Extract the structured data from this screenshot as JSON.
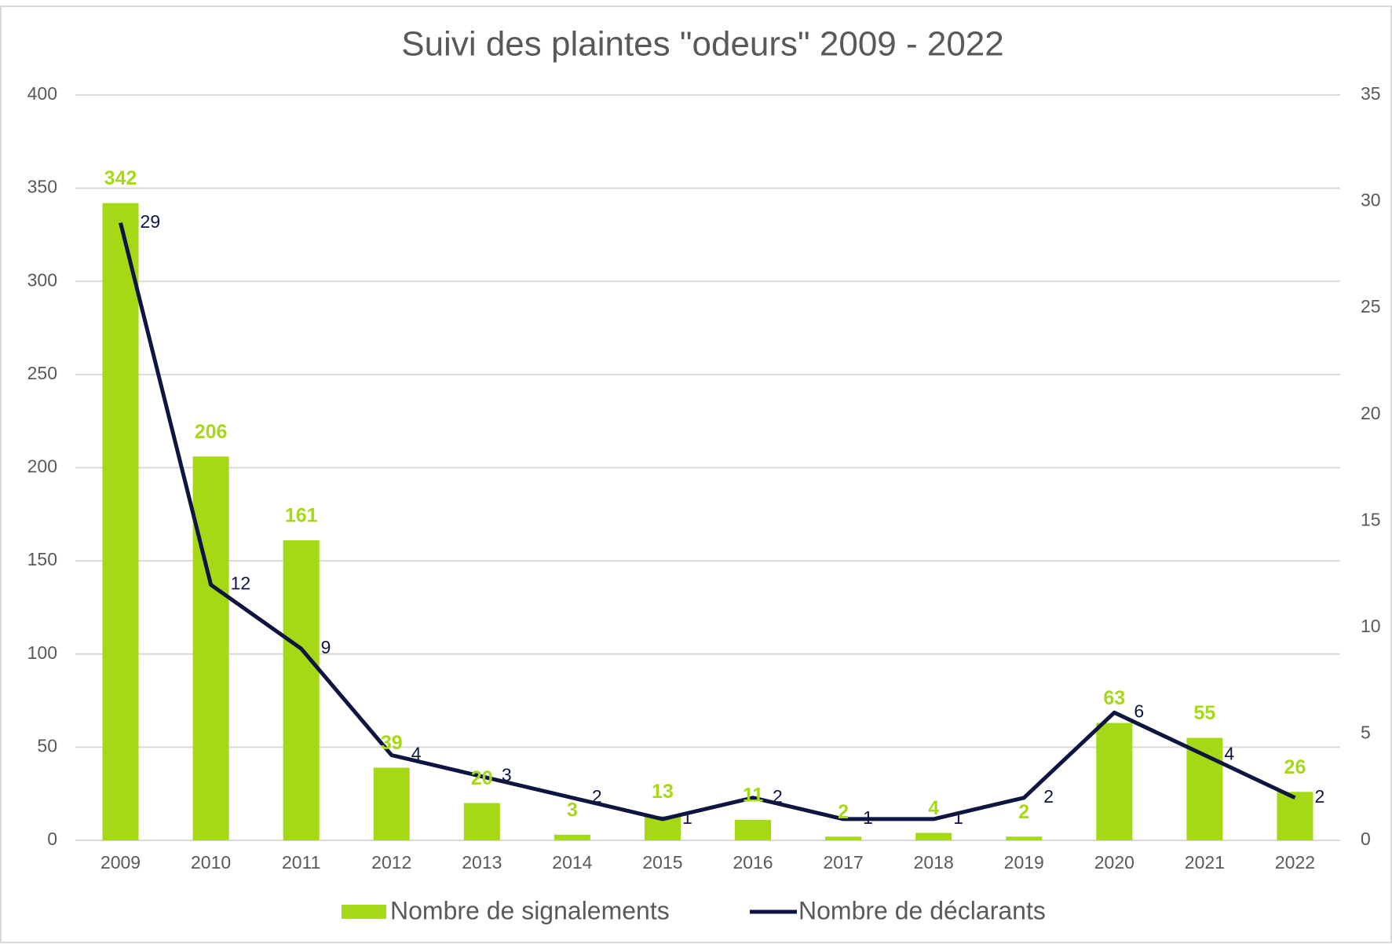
{
  "chart_data": {
    "type": "bar",
    "title": "Suivi des plaintes \"odeurs\" 2009 - 2022",
    "categories": [
      "2009",
      "2010",
      "2011",
      "2012",
      "2013",
      "2014",
      "2015",
      "2016",
      "2017",
      "2018",
      "2019",
      "2020",
      "2021",
      "2022"
    ],
    "series": [
      {
        "name": "Nombre de signalements",
        "type": "bar",
        "color": "#a6d915",
        "values": [
          342,
          206,
          161,
          39,
          20,
          3,
          13,
          11,
          2,
          4,
          2,
          63,
          55,
          26
        ]
      },
      {
        "name": "Nombre de déclarants",
        "type": "line",
        "axis": "y2",
        "color": "#0d1540",
        "values": [
          29,
          12,
          9,
          4,
          3,
          2,
          1,
          2,
          1,
          1,
          2,
          6,
          4,
          2
        ]
      }
    ],
    "ylim": [
      0,
      400
    ],
    "yticks": [
      0,
      50,
      100,
      150,
      200,
      250,
      300,
      350,
      400
    ],
    "y2lim": [
      0,
      35
    ],
    "y2ticks": [
      0,
      5,
      10,
      15,
      20,
      25,
      30,
      35
    ],
    "grid": true,
    "legend": "bottom"
  }
}
